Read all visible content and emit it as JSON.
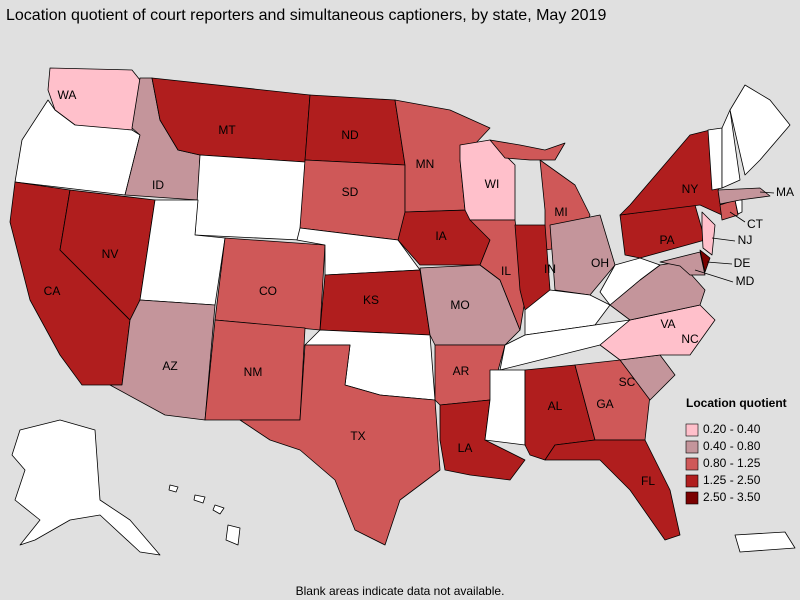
{
  "title": "Location quotient of court reporters and simultaneous captioners, by state, May 2019",
  "legend": {
    "title": "Location quotient",
    "items": [
      {
        "label": "0.20 - 0.40",
        "color": "#ffc0cb"
      },
      {
        "label": "0.40 - 0.80",
        "color": "#c4959b"
      },
      {
        "label": "0.80 - 1.25",
        "color": "#cf5858"
      },
      {
        "label": "1.25 - 2.50",
        "color": "#b01e1e"
      },
      {
        "label": "2.50 - 3.50",
        "color": "#7a0000"
      }
    ]
  },
  "states": [
    {
      "label": "WA",
      "color": "#ffc0cb"
    },
    {
      "label": "ID",
      "color": "#c4959b"
    },
    {
      "label": "MT",
      "color": "#b01e1e"
    },
    {
      "label": "ND",
      "color": "#b01e1e"
    },
    {
      "label": "SD",
      "color": "#cf5858"
    },
    {
      "label": "MN",
      "color": "#cf5858"
    },
    {
      "label": "WI",
      "color": "#ffc0cb"
    },
    {
      "label": "MI",
      "color": "#cf5858"
    },
    {
      "label": "NV",
      "color": "#b01e1e"
    },
    {
      "label": "CA",
      "color": "#b01e1e"
    },
    {
      "label": "CO",
      "color": "#cf5858"
    },
    {
      "label": "KS",
      "color": "#b01e1e"
    },
    {
      "label": "IA",
      "color": "#b01e1e"
    },
    {
      "label": "IL",
      "color": "#cf5858"
    },
    {
      "label": "IN",
      "color": "#b01e1e"
    },
    {
      "label": "OH",
      "color": "#c4959b"
    },
    {
      "label": "PA",
      "color": "#b01e1e"
    },
    {
      "label": "NY",
      "color": "#b01e1e"
    },
    {
      "label": "MA",
      "color": "#c4959b"
    },
    {
      "label": "CT",
      "color": "#cf5858"
    },
    {
      "label": "NJ",
      "color": "#ffc0cb"
    },
    {
      "label": "DE",
      "color": "#7a0000"
    },
    {
      "label": "MD",
      "color": "#c4959b"
    },
    {
      "label": "VA",
      "color": "#c4959b"
    },
    {
      "label": "NC",
      "color": "#ffc0cb"
    },
    {
      "label": "SC",
      "color": "#c4959b"
    },
    {
      "label": "GA",
      "color": "#cf5858"
    },
    {
      "label": "AL",
      "color": "#b01e1e"
    },
    {
      "label": "FL",
      "color": "#b01e1e"
    },
    {
      "label": "LA",
      "color": "#b01e1e"
    },
    {
      "label": "AR",
      "color": "#cf5858"
    },
    {
      "label": "MO",
      "color": "#c4959b"
    },
    {
      "label": "TX",
      "color": "#cf5858"
    },
    {
      "label": "NM",
      "color": "#cf5858"
    },
    {
      "label": "AZ",
      "color": "#c4959b"
    }
  ],
  "footnote": "Blank areas indicate data not available."
}
